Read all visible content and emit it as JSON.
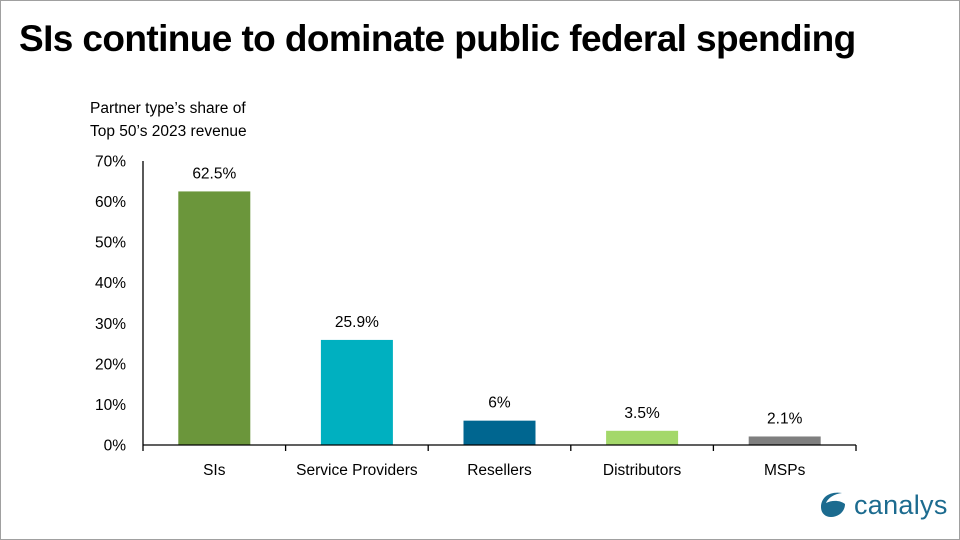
{
  "slide": {
    "title": "SIs continue to dominate public federal spending",
    "logo_text": "canalys",
    "logo_icon": "canalys-swoosh-icon",
    "brand_color": "#1c6b8f"
  },
  "chart_data": {
    "type": "bar",
    "title": "SIs continue to dominate public federal spending",
    "ylabel": "Partner type’s share of\nTop 50’s 2023 revenue",
    "xlabel": "",
    "categories": [
      "SIs",
      "Service Providers",
      "Resellers",
      "Distributors",
      "MSPs"
    ],
    "values": [
      62.5,
      25.9,
      6,
      3.5,
      2.1
    ],
    "data_labels": [
      "62.5%",
      "25.9%",
      "6%",
      "3.5%",
      "2.1%"
    ],
    "colors": [
      "#6b963b",
      "#00b0c0",
      "#006690",
      "#a4d86a",
      "#7f7f7f"
    ],
    "yticks": [
      0,
      10,
      20,
      30,
      40,
      50,
      60,
      70
    ],
    "ytick_labels": [
      "0%",
      "10%",
      "20%",
      "30%",
      "40%",
      "50%",
      "60%",
      "70%"
    ],
    "ylim": [
      0,
      70
    ],
    "grid": false,
    "legend": "none",
    "unit": "%"
  }
}
